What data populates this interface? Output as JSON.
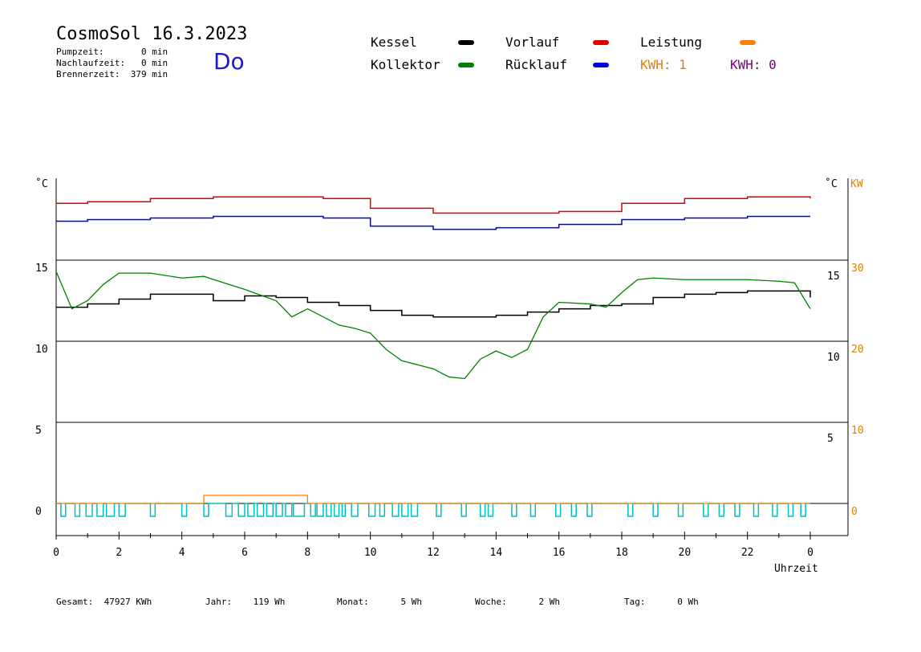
{
  "header": {
    "title": "CosmoSol 16.3.2023",
    "pumpzeit": "Pumpzeit:       0 min",
    "nachlaufzeit": "Nachlaufzeit:   0 min",
    "brennerzeit": "Brennerzeit:  379 min",
    "day": "Do"
  },
  "legend": {
    "kessel": "Kessel",
    "vorlauf": "Vorlauf",
    "leistung": "Leistung",
    "kollektor": "Kollektor",
    "ruecklauf": "Rücklauf",
    "kwh1": "KWH: 1",
    "kwh2": "KWH: 0",
    "colors": {
      "kessel": "#000000",
      "vorlauf": "#e00000",
      "leistung": "#ff8000",
      "kollektor": "#008000",
      "ruecklauf": "#0000e0",
      "kwh1": "#e08000",
      "kwh2": "#800080",
      "pump": "#00c0c0"
    }
  },
  "axes": {
    "left_unit": "˚C",
    "right_unit": "˚C",
    "right_unit2": "KW",
    "x_label": "Uhrzeit"
  },
  "chart_data": {
    "type": "line",
    "xlim": [
      0,
      24
    ],
    "x_ticks": [
      "0",
      "2",
      "4",
      "6",
      "8",
      "10",
      "12",
      "14",
      "16",
      "18",
      "20",
      "22",
      "0"
    ],
    "y_left_ticks": [
      "15",
      "10",
      "5",
      "0"
    ],
    "y_right_ticks": [
      "15",
      "10",
      "5"
    ],
    "y_right2_ticks": [
      "30",
      "20",
      "10",
      "0"
    ],
    "series": [
      {
        "name": "Vorlauf",
        "x": [
          0,
          1,
          3,
          5,
          8.5,
          10,
          12,
          14,
          16,
          18,
          20,
          22,
          24
        ],
        "y": [
          18.5,
          18.6,
          18.8,
          18.9,
          18.8,
          18.2,
          17.9,
          17.9,
          18.0,
          18.5,
          18.8,
          18.9,
          18.8
        ]
      },
      {
        "name": "Rücklauf",
        "x": [
          0,
          1,
          3,
          5,
          8.5,
          10,
          12,
          14,
          16,
          18,
          20,
          22,
          24
        ],
        "y": [
          17.4,
          17.5,
          17.6,
          17.7,
          17.6,
          17.1,
          16.9,
          17.0,
          17.2,
          17.5,
          17.6,
          17.7,
          17.7
        ]
      },
      {
        "name": "Kessel",
        "x": [
          0,
          1,
          2,
          3,
          4,
          4.7,
          5,
          6,
          7,
          8,
          9,
          10,
          11,
          12,
          13,
          14,
          15,
          16,
          17,
          18,
          19,
          20,
          21,
          22,
          23,
          24
        ],
        "y": [
          12.1,
          12.3,
          12.6,
          12.9,
          12.9,
          12.9,
          12.5,
          12.8,
          12.7,
          12.4,
          12.2,
          11.9,
          11.6,
          11.5,
          11.5,
          11.6,
          11.8,
          12.0,
          12.2,
          12.3,
          12.7,
          12.9,
          13.0,
          13.1,
          13.1,
          12.7
        ]
      },
      {
        "name": "Kollektor",
        "x": [
          0,
          0.5,
          1,
          1.5,
          2,
          3,
          4,
          4.7,
          5.5,
          6,
          7,
          7.5,
          8,
          9,
          9.5,
          10,
          10.5,
          11,
          12,
          12.5,
          13,
          13.5,
          14,
          14.5,
          15,
          15.5,
          16,
          17,
          17.5,
          18,
          18.5,
          19,
          20,
          21,
          22,
          23,
          23.5,
          24
        ],
        "y": [
          14.3,
          12.0,
          12.5,
          13.5,
          14.2,
          14.2,
          13.9,
          14.0,
          13.5,
          13.2,
          12.5,
          11.5,
          12.0,
          11.0,
          10.8,
          10.5,
          9.5,
          8.8,
          8.3,
          7.8,
          7.7,
          8.9,
          9.4,
          9.0,
          9.5,
          11.5,
          12.4,
          12.3,
          12.1,
          13.0,
          13.8,
          13.9,
          13.8,
          13.8,
          13.8,
          13.7,
          13.6,
          12.0
        ]
      },
      {
        "name": "Leistung",
        "x": [
          0,
          4.6,
          4.7,
          5.4,
          7.9,
          8.0,
          24
        ],
        "y": [
          0,
          0,
          0.5,
          0.5,
          0.5,
          0,
          0
        ]
      }
    ],
    "pump_runs": [
      [
        0.15,
        0.3
      ],
      [
        0.6,
        0.75
      ],
      [
        0.95,
        1.15
      ],
      [
        1.3,
        1.5
      ],
      [
        1.6,
        1.85
      ],
      [
        2.0,
        2.2
      ],
      [
        3.0,
        3.15
      ],
      [
        4.0,
        4.15
      ],
      [
        4.7,
        4.85
      ],
      [
        5.4,
        5.6
      ],
      [
        5.8,
        6.0
      ],
      [
        6.1,
        6.3
      ],
      [
        6.4,
        6.6
      ],
      [
        6.7,
        6.9
      ],
      [
        7.0,
        7.2
      ],
      [
        7.3,
        7.5
      ],
      [
        7.55,
        7.9
      ],
      [
        8.1,
        8.25
      ],
      [
        8.3,
        8.5
      ],
      [
        8.6,
        8.75
      ],
      [
        8.85,
        9.0
      ],
      [
        9.1,
        9.2
      ],
      [
        9.4,
        9.6
      ],
      [
        9.95,
        10.15
      ],
      [
        10.3,
        10.45
      ],
      [
        10.7,
        10.9
      ],
      [
        11.0,
        11.2
      ],
      [
        11.3,
        11.5
      ],
      [
        12.1,
        12.25
      ],
      [
        12.9,
        13.05
      ],
      [
        13.5,
        13.65
      ],
      [
        13.75,
        13.9
      ],
      [
        14.5,
        14.65
      ],
      [
        15.1,
        15.25
      ],
      [
        15.9,
        16.05
      ],
      [
        16.4,
        16.55
      ],
      [
        16.9,
        17.05
      ],
      [
        18.2,
        18.35
      ],
      [
        19.0,
        19.15
      ],
      [
        19.8,
        19.95
      ],
      [
        20.6,
        20.75
      ],
      [
        21.1,
        21.25
      ],
      [
        21.6,
        21.75
      ],
      [
        22.2,
        22.35
      ],
      [
        22.8,
        22.95
      ],
      [
        23.3,
        23.45
      ],
      [
        23.7,
        23.85
      ]
    ]
  },
  "footer": {
    "gesamt": "Gesamt:  47927 KWh",
    "jahr": "Jahr:    119 Wh",
    "monat": "Monat:      5 Wh",
    "woche": "Woche:      2 Wh",
    "tag": "Tag:      0 Wh"
  }
}
